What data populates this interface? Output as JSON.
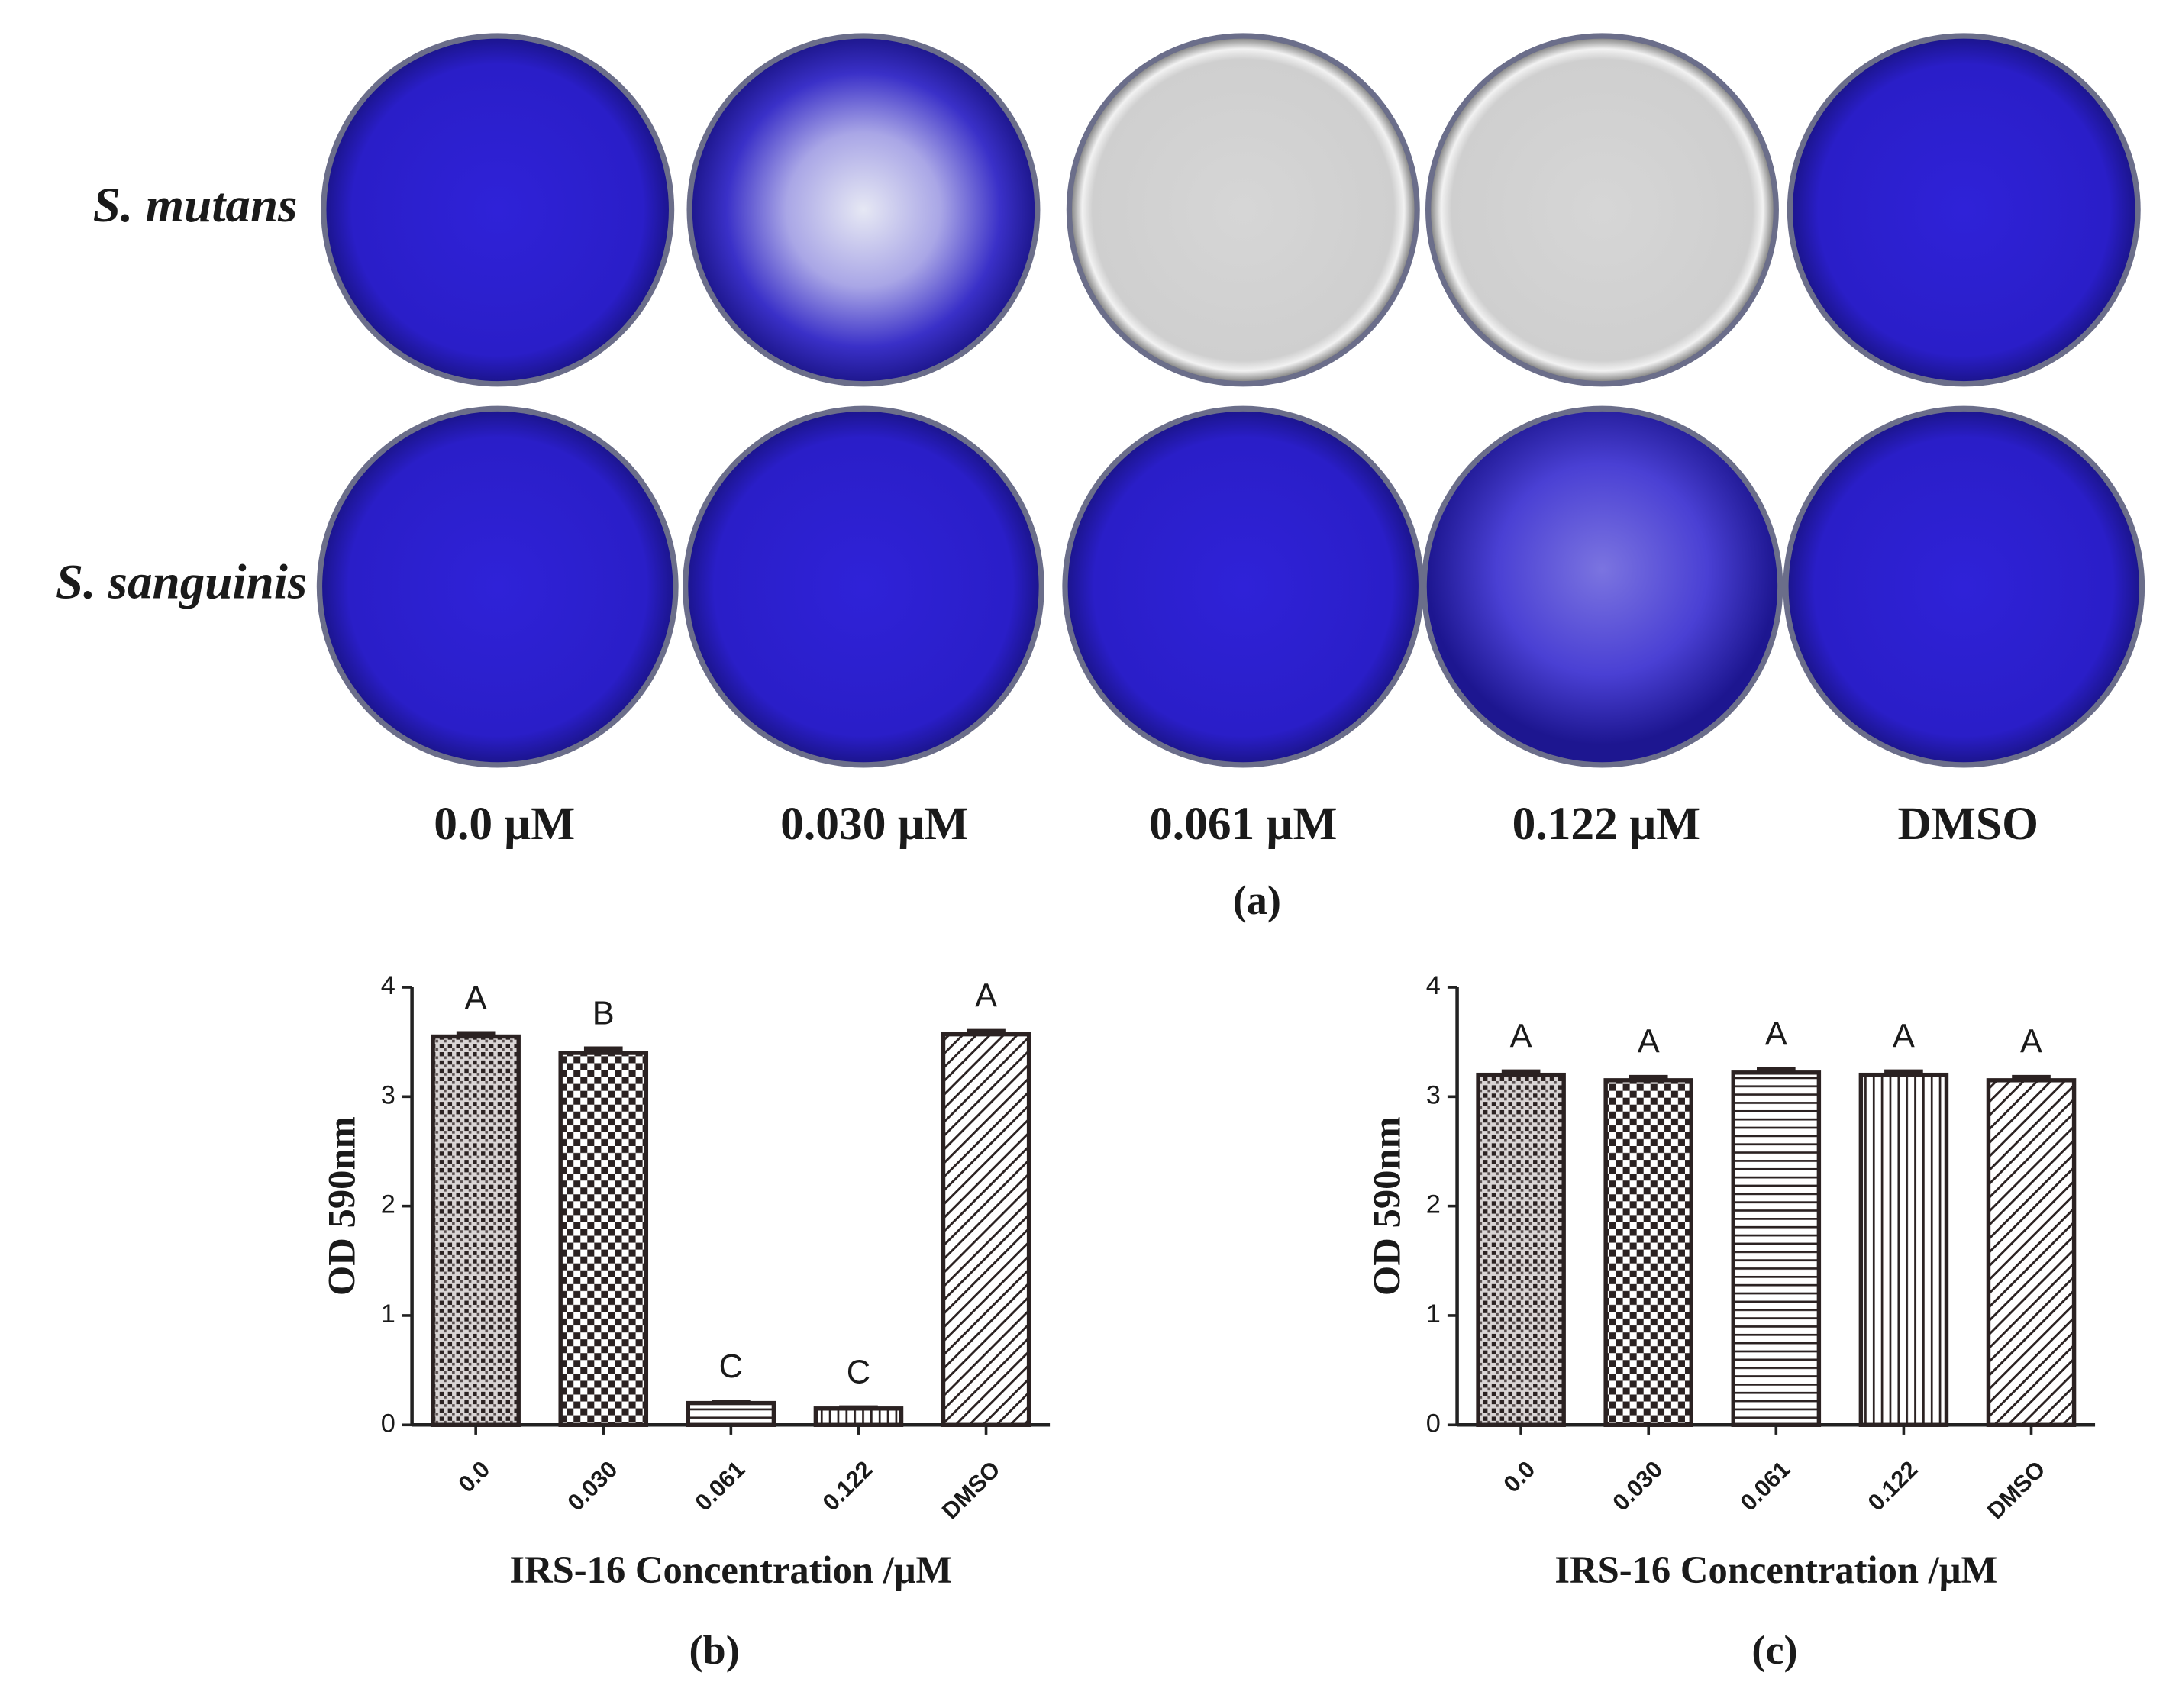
{
  "panel_a": {
    "row_labels": [
      "S. mutans",
      "S. sanguinis"
    ],
    "column_labels": [
      "0.0 μM",
      "0.030 μM",
      "0.061 μM",
      "0.122 μM",
      "DMSO"
    ],
    "caption": "(a)"
  },
  "chart_data": [
    {
      "type": "bar",
      "caption": "(b)",
      "ylabel": "OD 590nm",
      "xlabel": "IRS-16 Concentration /μM",
      "categories": [
        "0.0",
        "0.030",
        "0.061",
        "0.122",
        "DMSO"
      ],
      "values": [
        3.55,
        3.4,
        0.2,
        0.15,
        3.57
      ],
      "errors": [
        0.03,
        0.04,
        0.01,
        0.01,
        0.03
      ],
      "annotations": [
        "A",
        "B",
        "C",
        "C",
        "A"
      ],
      "color": "#2b2222",
      "ylim": [
        0,
        4
      ],
      "yticks": [
        0,
        1,
        2,
        3,
        4
      ]
    },
    {
      "type": "bar",
      "caption": "(c)",
      "ylabel": "OD 590nm",
      "xlabel": "IRS-16 Concentration /μM",
      "categories": [
        "0.0",
        "0.030",
        "0.061",
        "0.122",
        "DMSO"
      ],
      "values": [
        3.2,
        3.15,
        3.22,
        3.2,
        3.15
      ],
      "errors": [
        0.03,
        0.03,
        0.03,
        0.03,
        0.03
      ],
      "annotations": [
        "A",
        "A",
        "A",
        "A",
        "A"
      ],
      "color": "#2b2222",
      "ylim": [
        0,
        4
      ],
      "yticks": [
        0,
        1,
        2,
        3,
        4
      ]
    }
  ]
}
